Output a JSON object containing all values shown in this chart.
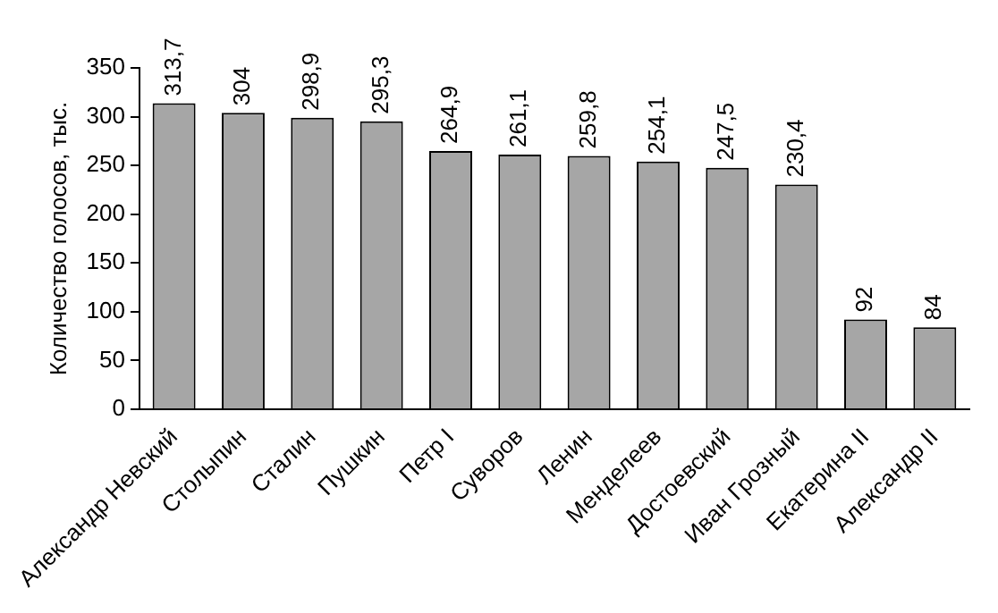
{
  "chart_data": {
    "type": "bar",
    "ylabel": "Количество голосов, тыс.",
    "categories": [
      "Александр Невский",
      "Столыпин",
      "Сталин",
      "Пушкин",
      "Петр I",
      "Суворов",
      "Ленин",
      "Менделеев",
      "Достоевский",
      "Иван Грозный",
      "Екатерина II",
      "Александр II"
    ],
    "values": [
      313.7,
      304,
      298.9,
      295.3,
      264.9,
      261.1,
      259.8,
      254.1,
      247.5,
      230.4,
      92,
      84
    ],
    "value_labels": [
      "313,7",
      "304",
      "298,9",
      "295,3",
      "264,9",
      "261,1",
      "259,8",
      "254,1",
      "247,5",
      "230,4",
      "92",
      "84"
    ],
    "color": "#a6a6a6",
    "ylim": [
      0,
      350
    ],
    "yticks": [
      0,
      50,
      100,
      150,
      200,
      250,
      300,
      350
    ],
    "grid": false,
    "legend": false
  }
}
